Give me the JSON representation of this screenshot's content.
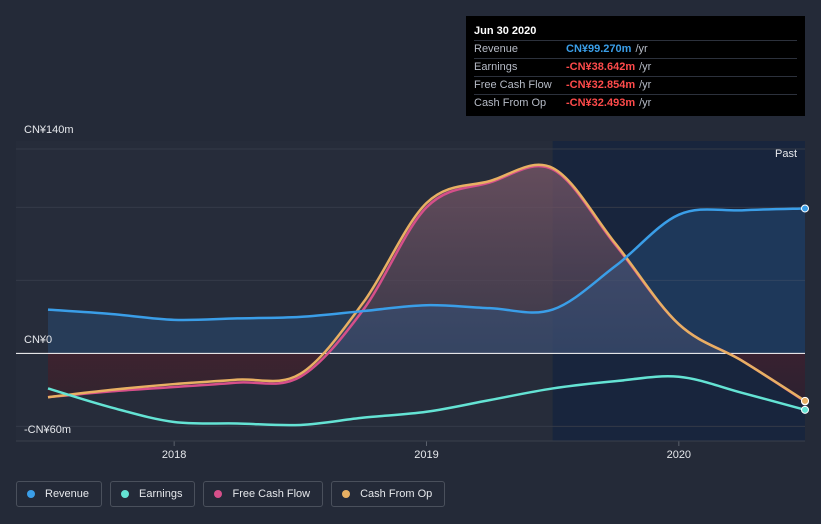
{
  "tooltip": {
    "date": "Jun 30 2020",
    "unit": "/yr",
    "rows": [
      {
        "label": "Revenue",
        "value": "CN¥99.270m",
        "color": "#3a9ee8"
      },
      {
        "label": "Earnings",
        "value": "-CN¥38.642m",
        "color": "#ff4b4b"
      },
      {
        "label": "Free Cash Flow",
        "value": "-CN¥32.854m",
        "color": "#ff4b4b"
      },
      {
        "label": "Cash From Op",
        "value": "-CN¥32.493m",
        "color": "#ff4b4b"
      }
    ]
  },
  "legend": [
    {
      "label": "Revenue",
      "color": "#3a9ee8"
    },
    {
      "label": "Earnings",
      "color": "#64e3d4"
    },
    {
      "label": "Free Cash Flow",
      "color": "#d64f8a"
    },
    {
      "label": "Cash From Op",
      "color": "#e8b063"
    }
  ],
  "chart_data": {
    "type": "line",
    "title": "",
    "y_tick_labels": [
      "CN¥140m",
      "CN¥0",
      "-CN¥60m"
    ],
    "ylim": [
      -60,
      140
    ],
    "xlim": [
      2017.5,
      2020.5
    ],
    "x_ticks": [
      2018,
      2019,
      2020
    ],
    "x_tick_labels": [
      "2018",
      "2019",
      "2020"
    ],
    "past_label": "Past",
    "past_start": 2019.5,
    "series": [
      {
        "name": "Revenue",
        "color": "#3a9ee8",
        "points": [
          [
            2017.5,
            30
          ],
          [
            2017.75,
            27
          ],
          [
            2018,
            23
          ],
          [
            2018.25,
            24
          ],
          [
            2018.5,
            25
          ],
          [
            2018.75,
            29
          ],
          [
            2019,
            33
          ],
          [
            2019.25,
            31
          ],
          [
            2019.5,
            30
          ],
          [
            2019.75,
            60
          ],
          [
            2020,
            95
          ],
          [
            2020.25,
            98
          ],
          [
            2020.5,
            99.27
          ]
        ]
      },
      {
        "name": "Earnings",
        "color": "#64e3d4",
        "points": [
          [
            2017.5,
            -24
          ],
          [
            2017.75,
            -37
          ],
          [
            2018,
            -47
          ],
          [
            2018.25,
            -48
          ],
          [
            2018.5,
            -49
          ],
          [
            2018.75,
            -44
          ],
          [
            2019,
            -40
          ],
          [
            2019.25,
            -32
          ],
          [
            2019.5,
            -24
          ],
          [
            2019.75,
            -19
          ],
          [
            2020,
            -16
          ],
          [
            2020.25,
            -27
          ],
          [
            2020.5,
            -38.642
          ]
        ]
      },
      {
        "name": "Free Cash Flow",
        "color": "#d64f8a",
        "points": [
          [
            2017.5,
            -30
          ],
          [
            2017.75,
            -26
          ],
          [
            2018,
            -23
          ],
          [
            2018.25,
            -20
          ],
          [
            2018.5,
            -16
          ],
          [
            2018.75,
            30
          ],
          [
            2019,
            100
          ],
          [
            2019.25,
            117
          ],
          [
            2019.5,
            126
          ],
          [
            2019.75,
            74
          ],
          [
            2020,
            20
          ],
          [
            2020.25,
            -5
          ],
          [
            2020.5,
            -32.854
          ]
        ]
      },
      {
        "name": "Cash From Op",
        "color": "#e8b063",
        "points": [
          [
            2017.5,
            -30
          ],
          [
            2017.75,
            -25
          ],
          [
            2018,
            -21
          ],
          [
            2018.25,
            -18
          ],
          [
            2018.5,
            -14
          ],
          [
            2018.75,
            35
          ],
          [
            2019,
            103
          ],
          [
            2019.25,
            118
          ],
          [
            2019.5,
            127
          ],
          [
            2019.75,
            75
          ],
          [
            2020,
            20
          ],
          [
            2020.25,
            -5
          ],
          [
            2020.5,
            -32.493
          ]
        ]
      }
    ]
  }
}
